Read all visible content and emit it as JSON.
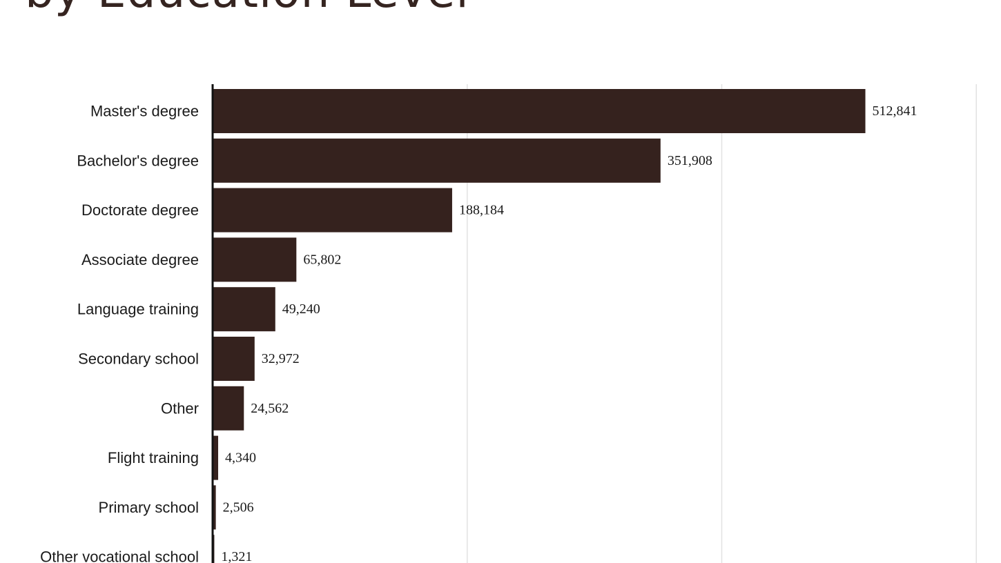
{
  "title": "by Education Level",
  "colors": {
    "bar": "#35221e",
    "gridline": "#e2e2e2",
    "axis": "#111111",
    "title": "#352420"
  },
  "chart_data": {
    "type": "bar",
    "orientation": "horizontal",
    "title": "by Education Level",
    "categories": [
      "Master's degree",
      "Bachelor's degree",
      "Doctorate degree",
      "Associate degree",
      "Language training",
      "Secondary school",
      "Other",
      "Flight training",
      "Primary school",
      "Other vocational school"
    ],
    "values": [
      512841,
      351908,
      188184,
      65802,
      49240,
      32972,
      24562,
      4340,
      2506,
      1321
    ],
    "value_labels": [
      "512,841",
      "351,908",
      "188,184",
      "65,802",
      "49,240",
      "32,972",
      "24,562",
      "4,340",
      "2,506",
      "1,321"
    ],
    "xlim": [
      0,
      600000
    ],
    "grid": true,
    "legend": "none"
  }
}
